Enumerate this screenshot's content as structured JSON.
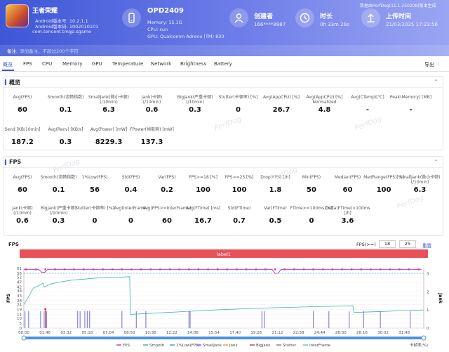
{
  "header": {
    "game_name": "王者荣耀",
    "android_version": "Android版本号: 10.2.1.1",
    "android_code": "Android版本码: 1002010101",
    "package": "com.tencent.tmgp.sgame",
    "device_name": "OPD2409",
    "memory": "Memory: 15.1G",
    "cpu": "CPU: sun",
    "gpu": "GPU: Qualcomm Adreno (TM) 830",
    "creator_label": "创建者",
    "creator_value": "166****8987",
    "duration_label": "时长",
    "duration_value": "0h 33m 26s",
    "upload_label": "上传时间",
    "upload_value": "21/03/2025 17:23:56",
    "version_note": "数据由PerfDog(11.1.250208)版本生成",
    "note_label": "备注:",
    "note_placeholder": "添加备注，不超过200个字符"
  },
  "tabs": [
    "概览",
    "FPS",
    "CPU",
    "Memory",
    "GPU",
    "Temperature",
    "Network",
    "Brightness",
    "Battery"
  ],
  "export_label": "导出",
  "overview": {
    "title": "概览",
    "row1": [
      {
        "l": "Avg(FPS)",
        "v": "60"
      },
      {
        "l": "Smooth(流畅指数)",
        "v": "0.1"
      },
      {
        "l": "SmallJank(微小卡顿)\n(/10min)",
        "v": "6.3"
      },
      {
        "l": "Jank(卡顿)\n(/10min)",
        "v": "0.6"
      },
      {
        "l": "BigJank(严重卡顿)\n(/10min)",
        "v": "0.3"
      },
      {
        "l": "Stutter(卡顿率) [%]",
        "v": "0"
      },
      {
        "l": "Avg(AppCPU) [%]",
        "v": "26.7"
      },
      {
        "l": "Avg(AppCPU) [%]\nNormalized",
        "v": "4.8"
      },
      {
        "l": "Avg(CTemp)[℃]",
        "v": "-"
      },
      {
        "l": "Peak(Memory) [MB]",
        "v": "-"
      }
    ],
    "row2": [
      {
        "l": "Send [KB/10min]",
        "v": "187.2"
      },
      {
        "l": "Avg(Recv) [KB/s]",
        "v": "0.3"
      },
      {
        "l": "Avg(Power) [mW]",
        "v": "8229.3"
      },
      {
        "l": "FPower(帧能耗) [mW]",
        "v": "137.3"
      }
    ]
  },
  "fps": {
    "title": "FPS",
    "row1": [
      {
        "l": "Avg(FPS)",
        "v": "60"
      },
      {
        "l": "Smooth(流畅指数)",
        "v": "0.1"
      },
      {
        "l": "1%Low(FPS)",
        "v": "56"
      },
      {
        "l": "Std(FPS)",
        "v": "0.4"
      },
      {
        "l": "Var(FPS)",
        "v": "0.2"
      },
      {
        "l": "FPS>=18 [%]",
        "v": "100"
      },
      {
        "l": "FPS>=25 [%]",
        "v": "100"
      },
      {
        "l": "Drop(FPS) [/h]",
        "v": "1.8"
      },
      {
        "l": "Min(FPS)",
        "v": "50"
      },
      {
        "l": "Median(FPS)",
        "v": "60"
      },
      {
        "l": "MedRange(FPS)[%]",
        "v": "100"
      },
      {
        "l": "SmallJank(微小卡顿)\n(/10min)",
        "v": "6.3"
      }
    ],
    "row2": [
      {
        "l": "Jank(卡顿)\n(/10min)",
        "v": "0.6"
      },
      {
        "l": "BigJank(严重卡顿)\n(/10min)",
        "v": "0.3"
      },
      {
        "l": "Stutter(卡顿率) [%]",
        "v": "0"
      },
      {
        "l": "Avg(InterFrame)",
        "v": "0"
      },
      {
        "l": "Avg(FPS>=InterFrame)",
        "v": "60"
      },
      {
        "l": "Avg(FTime) [ms]",
        "v": "16.7"
      },
      {
        "l": "Std(FTime)",
        "v": "0.7"
      },
      {
        "l": "Var(FTime)",
        "v": "0.5"
      },
      {
        "l": "FTime>=100ms [%]",
        "v": "0"
      },
      {
        "l": "Delta(FTime)>100ms [/h]",
        "v": "3.6"
      }
    ]
  },
  "watermark": "PerfDog",
  "chart_data": {
    "type": "line",
    "title": "FPS",
    "ylabel": "FPS",
    "y2label": "Jank",
    "threshold_label": "FPS(>=)",
    "threshold_values": [
      "18",
      "25"
    ],
    "reset_label": "重置",
    "band_label": "label1",
    "ylim": [
      0,
      61
    ],
    "yticks": [
      0,
      5,
      10,
      14,
      19,
      24,
      28,
      33,
      38,
      42,
      47,
      52,
      56,
      61
    ],
    "y2ticks": [
      0,
      1,
      2,
      3
    ],
    "xticks": [
      "00:00",
      "01:46",
      "03:32",
      "05:18",
      "07:04",
      "08:50",
      "10:36",
      "12:22",
      "14:08",
      "15:54",
      "17:40",
      "19:26",
      "21:12",
      "22:58",
      "24:44",
      "26:30",
      "28:16",
      "30:02",
      "31:48"
    ],
    "legend": [
      "FPS",
      "Smooth",
      "1%Low(FPS)",
      "SmallJank",
      "Jank",
      "BigJank",
      "Stutter",
      "InterFrame"
    ],
    "colors": {
      "FPS": "#c03cc0",
      "Smooth": "#3db6a8",
      "Low": "#3aa6d8",
      "SmallJank": "#6b6fdc",
      "Jank": "#f0a040",
      "BigJank": "#e03a3a",
      "Stutter": "#888888",
      "InterFrame": "#78c8a8"
    },
    "smooth_points": [
      [
        0,
        24
      ],
      [
        0.3,
        30
      ],
      [
        0.8,
        41
      ],
      [
        1.2,
        43
      ],
      [
        1.6,
        46
      ],
      [
        1.7,
        42
      ],
      [
        2.2,
        45
      ],
      [
        3,
        47
      ],
      [
        4,
        49
      ],
      [
        5,
        50
      ],
      [
        6,
        51
      ],
      [
        7,
        51.5
      ],
      [
        8,
        52
      ],
      [
        8.85,
        52.5
      ],
      [
        8.9,
        14
      ],
      [
        12,
        16
      ],
      [
        16,
        18.5
      ],
      [
        20,
        20.5
      ],
      [
        24,
        21.8
      ],
      [
        27.5,
        22.8
      ],
      [
        27.6,
        16
      ],
      [
        30,
        17
      ],
      [
        32,
        18
      ],
      [
        33.4,
        18.5
      ]
    ],
    "jank_times": [
      0.1,
      0.4,
      1.4,
      1.7,
      1.9,
      4.5,
      4.7,
      5.1,
      5.3,
      5.5,
      8.2,
      9.4,
      10.2,
      13.8,
      13.9,
      19.9,
      20.1,
      24.2,
      25.5,
      27.2,
      28.4,
      29.8,
      32.3
    ],
    "fps_dips": [
      [
        1.7,
        57
      ],
      [
        21.2,
        56
      ]
    ],
    "bigjank_times": [
      1.8
    ],
    "legend_label": "卡帧率(%)"
  }
}
